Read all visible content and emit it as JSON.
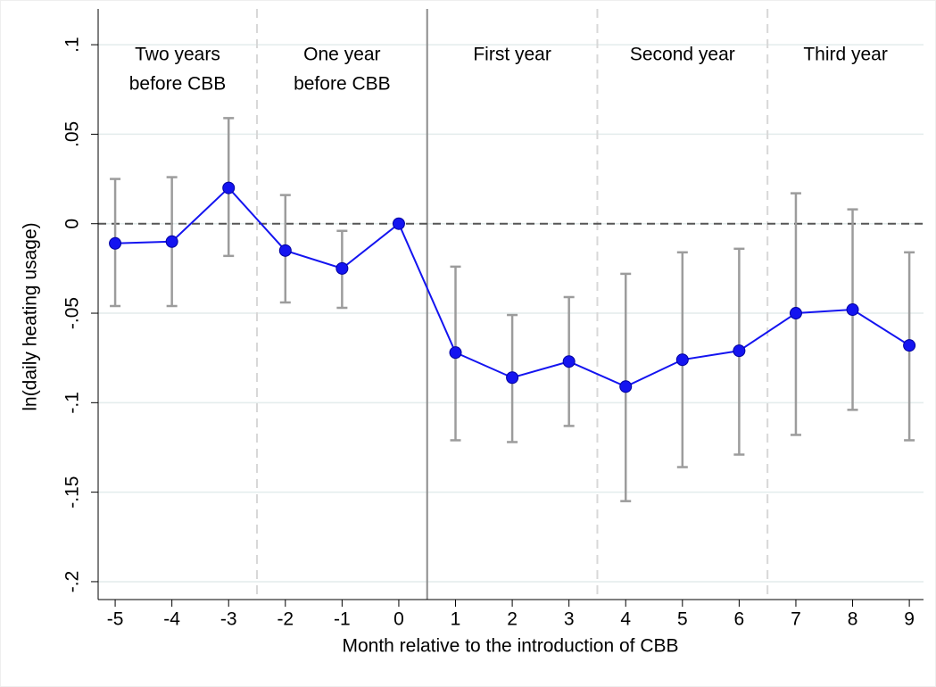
{
  "chart_data": {
    "type": "line",
    "x_label": "Month relative to the introduction of CBB",
    "y_label": "ln(daily heating usage)",
    "x": [
      -5,
      -4,
      -3,
      -2,
      -1,
      0,
      1,
      2,
      3,
      4,
      5,
      6,
      7,
      8,
      9
    ],
    "xticks": [
      -5,
      -4,
      -3,
      -2,
      -1,
      0,
      1,
      2,
      3,
      4,
      5,
      6,
      7,
      8,
      9
    ],
    "xlim": [
      -5.3,
      9.25
    ],
    "ylim": [
      -0.21,
      0.12
    ],
    "yticks": [
      {
        "value": 0.1,
        "label": ".1"
      },
      {
        "value": 0.05,
        "label": ".05"
      },
      0,
      {
        "value": -0.05,
        "label": "-.05"
      },
      {
        "value": -0.1,
        "label": "-.1"
      },
      {
        "value": -0.15,
        "label": "-.15"
      },
      {
        "value": -0.2,
        "label": "-.2"
      }
    ],
    "grid": true,
    "reference_y": 0,
    "series": [
      {
        "color": "#1414f0",
        "ci_color": "#9c9c9c",
        "values": [
          -0.011,
          -0.01,
          0.02,
          -0.015,
          -0.025,
          0,
          -0.072,
          -0.086,
          -0.077,
          -0.091,
          -0.076,
          -0.071,
          -0.05,
          -0.048,
          -0.068
        ],
        "upper": [
          0.025,
          0.026,
          0.059,
          0.016,
          -0.004,
          null,
          -0.024,
          -0.051,
          -0.041,
          -0.028,
          -0.016,
          -0.014,
          0.017,
          0.008,
          -0.016
        ],
        "lower": [
          -0.046,
          -0.046,
          -0.018,
          -0.044,
          -0.047,
          null,
          -0.121,
          -0.122,
          -0.113,
          -0.155,
          -0.136,
          -0.129,
          -0.118,
          -0.104,
          -0.121
        ]
      }
    ],
    "vlines": [
      {
        "x": -2.5,
        "style": "dashed"
      },
      {
        "x": 0.5,
        "style": "solid"
      },
      {
        "x": 3.5,
        "style": "dashed"
      },
      {
        "x": 6.5,
        "style": "dashed"
      }
    ],
    "regions": [
      [
        "Two years",
        "before CBB"
      ],
      [
        "One year",
        "before CBB"
      ],
      [
        "First year"
      ],
      [
        "Second year"
      ],
      [
        "Third year"
      ]
    ]
  }
}
